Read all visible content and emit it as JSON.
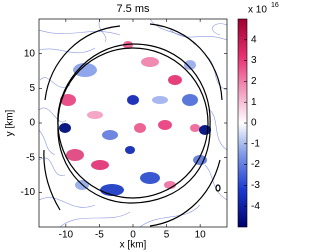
{
  "chart_data": {
    "type": "contour",
    "title": "7.5 ms",
    "x_label": "x [km]",
    "y_label": "y [km]",
    "xlim": [
      -14,
      14
    ],
    "xticks": [
      -10,
      -5,
      0,
      5,
      10
    ],
    "ylim": [
      -15,
      15
    ],
    "yticks": [
      -10,
      -5,
      0,
      5,
      10
    ],
    "colorbar": {
      "multiplier": "x 10",
      "exponent": "16",
      "clim": [
        -5,
        5
      ],
      "ticks": [
        -4,
        -3,
        -2,
        -1,
        0,
        1,
        2,
        3,
        4
      ]
    }
  }
}
